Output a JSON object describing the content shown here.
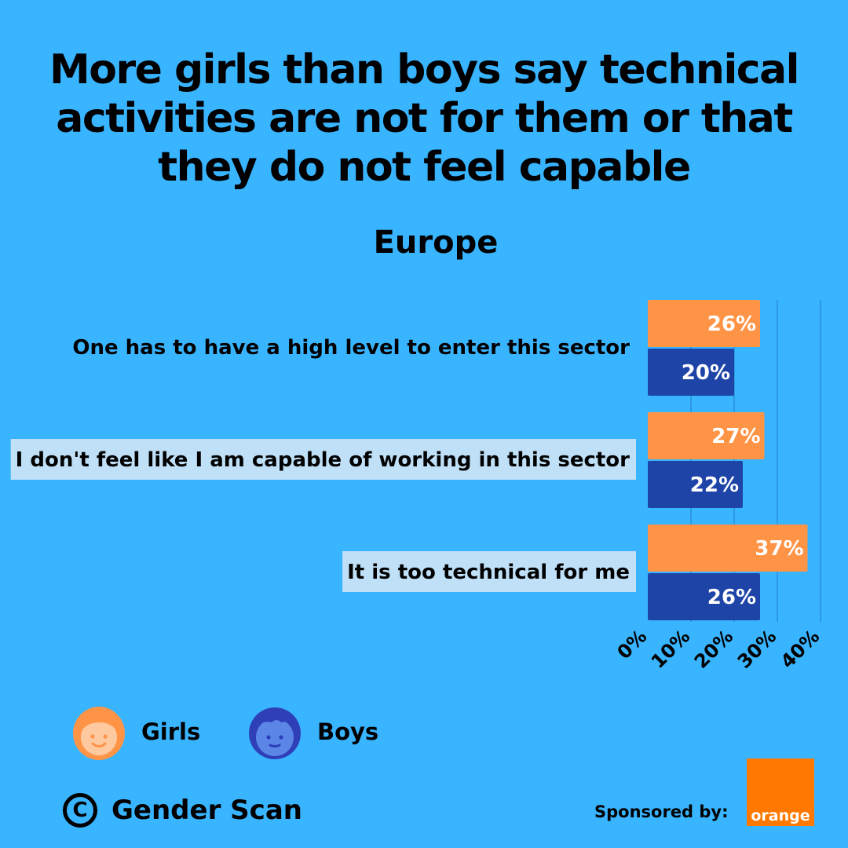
{
  "header": {
    "title_lines": [
      "More girls than boys say technical",
      "activities are not for them or that",
      "they do not feel capable"
    ],
    "subtitle": "Europe"
  },
  "chart_data": {
    "type": "bar",
    "orientation": "horizontal",
    "region": "Europe",
    "categories": [
      "One has to have a high level to enter this sector",
      "I don't feel like I am capable of working in this sector",
      "It is too technical for me"
    ],
    "series": [
      {
        "name": "Girls",
        "values": [
          26,
          27,
          37
        ],
        "labels": [
          "26%",
          "27%",
          "37%"
        ]
      },
      {
        "name": "Boys",
        "values": [
          20,
          22,
          26
        ],
        "labels": [
          "20%",
          "22%",
          "26%"
        ]
      }
    ],
    "xlim": [
      0,
      40
    ],
    "xticks": [
      "0%",
      "10%",
      "20%",
      "30%",
      "40%"
    ],
    "xtick_values": [
      0,
      10,
      20,
      30,
      40
    ],
    "grid": true,
    "highlighted_categories": [
      1,
      2
    ]
  },
  "legend": {
    "girls": "Girls",
    "boys": "Boys"
  },
  "footer": {
    "copyright_symbol": "C",
    "brand": "Gender Scan",
    "sponsored_by": "Sponsored by:",
    "sponsor_logo_text": "orange"
  },
  "colors": {
    "background": "#39B4FF",
    "girls": "#FF9447",
    "boys": "#1E44A8",
    "highlight": "#BFE0F7",
    "grid": "#2A8FD8",
    "orange_brand": "#FF7900"
  }
}
